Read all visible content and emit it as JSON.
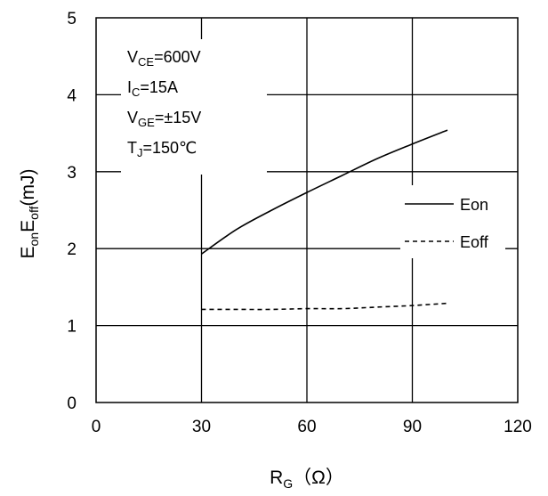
{
  "chart_data": {
    "type": "line",
    "title": "",
    "xlabel": {
      "main": "R",
      "sub": "G",
      "unit": "（Ω）"
    },
    "ylabel": {
      "e1": "E",
      "s1": "on",
      "e2": "E",
      "s2": "off",
      "unit": "(mJ)"
    },
    "xlim": [
      0,
      120
    ],
    "ylim": [
      0,
      5
    ],
    "xticks": [
      0,
      30,
      60,
      90,
      120
    ],
    "yticks": [
      0,
      1,
      2,
      3,
      4,
      5
    ],
    "grid": true,
    "legend_position": "right",
    "conditions": [
      {
        "main": "V",
        "sub": "CE",
        "rest": "=600V"
      },
      {
        "main": "I",
        "sub": "C",
        "rest": "=15A"
      },
      {
        "main": "V",
        "sub": "GE",
        "rest": "=±15V"
      },
      {
        "main": "T",
        "sub": "J",
        "rest": "=150℃"
      }
    ],
    "series": [
      {
        "name": "Eon",
        "style": "solid",
        "x": [
          30,
          40,
          50,
          60,
          70,
          80,
          90,
          100
        ],
        "y": [
          1.93,
          2.25,
          2.5,
          2.73,
          2.95,
          3.17,
          3.36,
          3.54
        ]
      },
      {
        "name": "Eoff",
        "style": "dashed",
        "x": [
          30,
          40,
          50,
          60,
          70,
          80,
          90,
          100
        ],
        "y": [
          1.21,
          1.21,
          1.21,
          1.22,
          1.22,
          1.24,
          1.26,
          1.29
        ]
      }
    ],
    "colors": {
      "line": "#000000",
      "grid": "#000000",
      "background": "#ffffff"
    }
  }
}
